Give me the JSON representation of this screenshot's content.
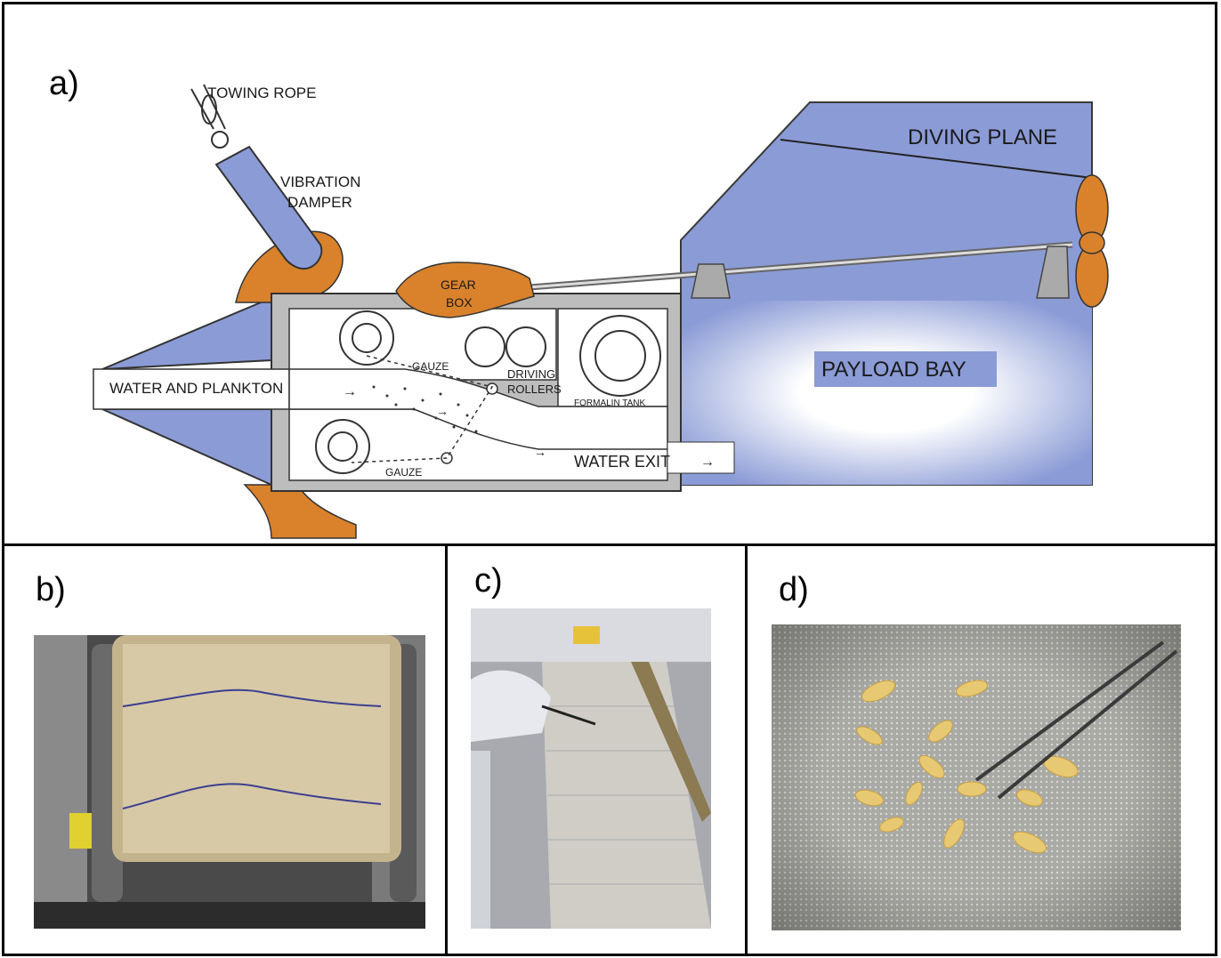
{
  "panels": {
    "a": {
      "label": "a)",
      "labels": {
        "towing_rope": "TOWING ROPE",
        "vibration_damper_1": "VIBRATION",
        "vibration_damper_2": "DAMPER",
        "gear": "GEAR",
        "box": "BOX",
        "diving_plane": "DIVING PLANE",
        "payload_bay": "PAYLOAD BAY",
        "water_and_plankton": "WATER AND PLANKTON",
        "gauze_top": "GAUZE",
        "gauze_bottom": "GAUZE",
        "driving": "DRIVING",
        "rollers": "ROLLERS",
        "formalin_tank": "FORMALIN TANK",
        "water_exit": "WATER EXIT"
      },
      "colors": {
        "blue": "#8B9BD6",
        "orange": "#D9822B",
        "grey": "#BDBDBD",
        "payload_label_bg": "#8B9BD6"
      }
    },
    "b": {
      "label": "b)"
    },
    "c": {
      "label": "c)"
    },
    "d": {
      "label": "d)"
    }
  }
}
